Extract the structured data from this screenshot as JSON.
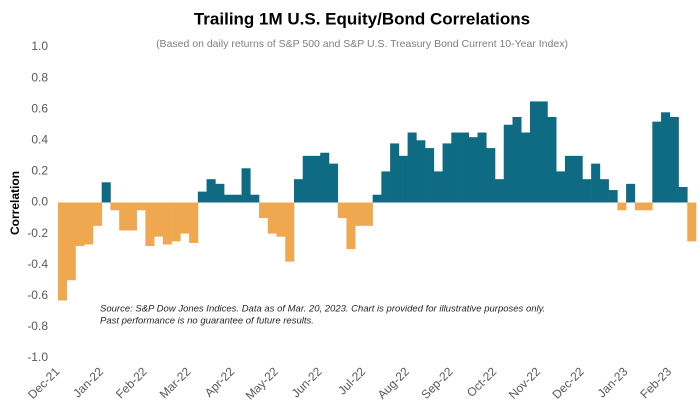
{
  "chart_data": {
    "type": "area",
    "title": "Trailing 1M U.S. Equity/Bond Correlations",
    "subtitle": "(Based on daily returns of S&P 500 and S&P U.S. Treasury Bond Current 10-Year Index)",
    "y_label": "Correlation",
    "notes": [
      "Source: S&P Dow Jones Indices.  Data as of Mar. 20, 2023.  Chart is provided for illustrative purposes only.",
      "Past performance is no guarantee of future results."
    ],
    "categories": [
      "Dec-21",
      null,
      null,
      null,
      null,
      "Jan-22",
      null,
      null,
      null,
      null,
      "Feb-22",
      null,
      null,
      null,
      null,
      "Mar-22",
      null,
      null,
      null,
      null,
      "Apr-22",
      null,
      null,
      null,
      null,
      "May-22",
      null,
      null,
      null,
      null,
      "Jun-22",
      null,
      null,
      null,
      null,
      "Jul-22",
      null,
      null,
      null,
      null,
      "Aug-22",
      null,
      null,
      null,
      null,
      "Sep-22",
      null,
      null,
      null,
      null,
      "Oct-22",
      null,
      null,
      null,
      null,
      "Nov-22",
      null,
      null,
      null,
      null,
      "Dec-22",
      null,
      null,
      null,
      null,
      "Jan-23",
      null,
      null,
      null,
      null,
      "Feb-23",
      null,
      null
    ],
    "values": [
      -0.63,
      -0.5,
      -0.28,
      -0.27,
      -0.15,
      0.13,
      -0.05,
      -0.18,
      -0.18,
      -0.05,
      -0.28,
      -0.22,
      -0.27,
      -0.25,
      -0.2,
      -0.26,
      0.07,
      0.15,
      0.12,
      0.05,
      0.05,
      0.22,
      0.05,
      -0.1,
      -0.2,
      -0.22,
      -0.38,
      0.15,
      0.3,
      0.3,
      0.32,
      0.25,
      -0.1,
      -0.3,
      -0.15,
      -0.15,
      0.05,
      0.2,
      0.38,
      0.3,
      0.45,
      0.4,
      0.35,
      0.2,
      0.38,
      0.45,
      0.45,
      0.42,
      0.45,
      0.35,
      0.15,
      0.5,
      0.55,
      0.45,
      0.65,
      0.65,
      0.55,
      0.2,
      0.3,
      0.3,
      0.15,
      0.25,
      0.15,
      0.08,
      -0.05,
      0.12,
      -0.05,
      -0.05,
      0.52,
      0.58,
      0.55,
      0.1,
      -0.25
    ],
    "positive_color": "#0f6a83",
    "negative_color": "#f0a850",
    "ylim": [
      -1,
      1
    ],
    "yticks": [
      {
        "value": 1,
        "label": "1.0"
      },
      0.8,
      0.6,
      0.4,
      0.2,
      {
        "value": 0,
        "label": "0.0"
      },
      -0.2,
      -0.4,
      -0.6,
      -0.8,
      {
        "value": -1,
        "label": "-1.0"
      }
    ],
    "grid": false
  }
}
